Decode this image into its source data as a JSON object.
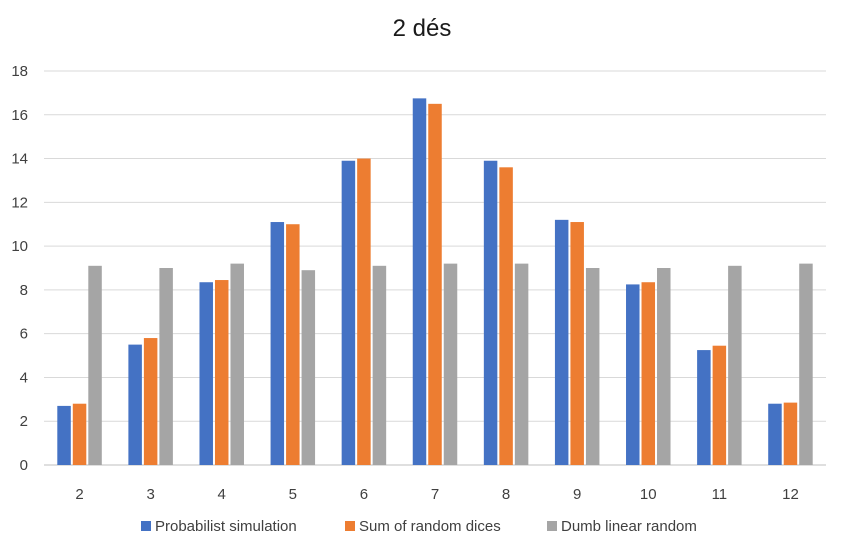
{
  "chart_data": {
    "type": "bar",
    "title": "2 dés",
    "xlabel": "",
    "ylabel": "",
    "ylim": [
      0,
      18
    ],
    "yticks": [
      0,
      2,
      4,
      6,
      8,
      10,
      12,
      14,
      16,
      18
    ],
    "grid": true,
    "legend_position": "bottom",
    "categories": [
      "2",
      "3",
      "4",
      "5",
      "6",
      "7",
      "8",
      "9",
      "10",
      "11",
      "12"
    ],
    "series": [
      {
        "name": "Probabilist simulation",
        "color": "#4472c4",
        "values": [
          2.7,
          5.5,
          8.35,
          11.1,
          13.9,
          16.75,
          13.9,
          11.2,
          8.25,
          5.25,
          2.8
        ]
      },
      {
        "name": "Sum of random dices",
        "color": "#ed7d31",
        "values": [
          2.8,
          5.8,
          8.45,
          11.0,
          14.0,
          16.5,
          13.6,
          11.1,
          8.35,
          5.45,
          2.85
        ]
      },
      {
        "name": "Dumb linear random",
        "color": "#a5a5a5",
        "values": [
          9.1,
          9.0,
          9.2,
          8.9,
          9.1,
          9.2,
          9.2,
          9.0,
          9.0,
          9.1,
          9.2
        ]
      }
    ]
  }
}
